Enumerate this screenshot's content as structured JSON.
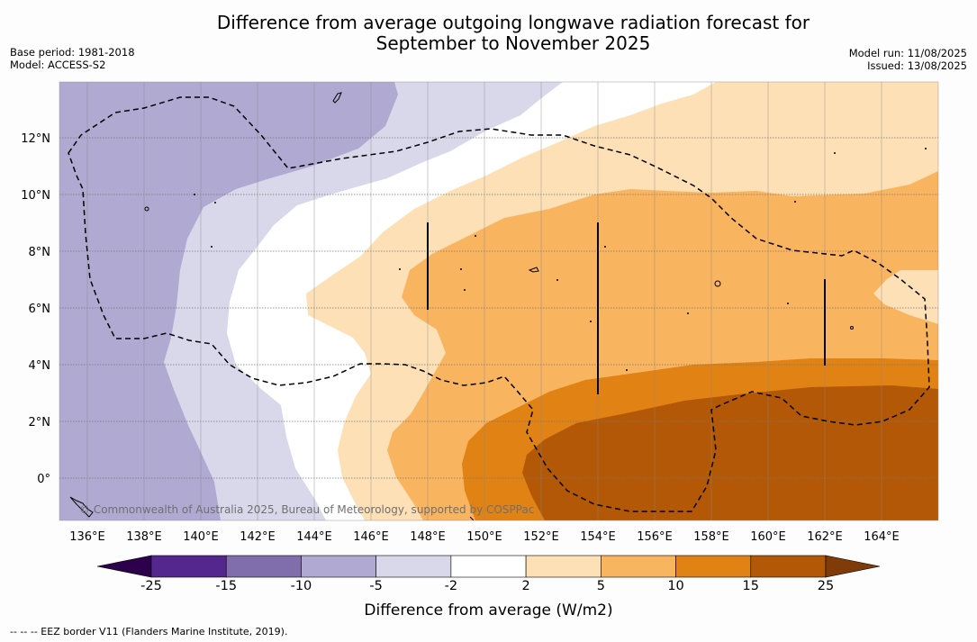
{
  "title_line1": "Difference from average outgoing longwave radiation forecast for",
  "title_line2": "September to November 2025",
  "base_period": "Base period: 1981-2018",
  "model": "Model: ACCESS-S2",
  "model_run": "Model run: 11/08/2025",
  "issued": "Issued: 13/08/2025",
  "copyright": "© Commonwealth of Australia 2025, Bureau of Meteorology, supported by COSPPac",
  "lat_ticks": [
    "12°N",
    "10°N",
    "8°N",
    "6°N",
    "4°N",
    "2°N",
    "0°"
  ],
  "lon_ticks": [
    "136°E",
    "138°E",
    "140°E",
    "142°E",
    "144°E",
    "146°E",
    "148°E",
    "150°E",
    "152°E",
    "154°E",
    "156°E",
    "158°E",
    "160°E",
    "162°E",
    "164°E"
  ],
  "colorbar": {
    "title": "Difference from average (W/m2)",
    "labels": [
      "-25",
      "-15",
      "-10",
      "-5",
      "-2",
      "2",
      "5",
      "10",
      "15",
      "25"
    ],
    "colors": [
      "#54278f",
      "#7f6eab",
      "#b0a9d2",
      "#d8d8ea",
      "#ffffff",
      "#fde0b6",
      "#f9b460",
      "#e08214",
      "#b35806"
    ],
    "extend_low_color": "#2d004b",
    "extend_high_color": "#7f3b08"
  },
  "footnote": "-- -- -- EEZ border V11 (Flanders Marine Institute, 2019)."
}
